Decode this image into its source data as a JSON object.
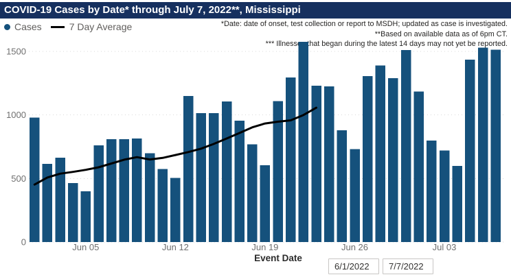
{
  "title": "COVID-19 Cases by Date* through July 7, 2022**, Mississippi",
  "legend": {
    "cases_label": "Cases",
    "avg_label": "7 Day Average"
  },
  "annotations": [
    "*Date: date of onset, test collection or report to MSDH; updated as case is investigated.",
    "**Based on available data as of 6pm CT.",
    "*** Illnesses that began during the latest 14 days may not yet be reported."
  ],
  "colors": {
    "title_bar": "#16305F",
    "bar": "#15517C",
    "avg_line": "#000000",
    "axis_text": "#6F6F6F",
    "legend_text": "#605E5C",
    "annotation_text": "#252423",
    "gridline": "#D9D9D9"
  },
  "date_filters": {
    "start": "6/1/2022",
    "end": "7/7/2022"
  },
  "chart_data": {
    "type": "bar",
    "title": "COVID-19 Cases by Date* through July 7, 2022**, Mississippi",
    "xlabel": "Event Date",
    "ylabel": "",
    "ylim": [
      0,
      1600
    ],
    "yticks": [
      0,
      500,
      1000,
      1500
    ],
    "grid": "horizontal-dotted",
    "legend_position": "top-left",
    "xtick_labels": [
      "Jun 05",
      "Jun 12",
      "Jun 19",
      "Jun 26",
      "Jul 03"
    ],
    "xtick_indices": [
      4,
      11,
      18,
      25,
      32
    ],
    "dates": [
      "Jun 01",
      "Jun 02",
      "Jun 03",
      "Jun 04",
      "Jun 05",
      "Jun 06",
      "Jun 07",
      "Jun 08",
      "Jun 09",
      "Jun 10",
      "Jun 11",
      "Jun 12",
      "Jun 13",
      "Jun 14",
      "Jun 15",
      "Jun 16",
      "Jun 17",
      "Jun 18",
      "Jun 19",
      "Jun 20",
      "Jun 21",
      "Jun 22",
      "Jun 23",
      "Jun 24",
      "Jun 25",
      "Jun 26",
      "Jun 27",
      "Jun 28",
      "Jun 29",
      "Jun 30",
      "Jul 01",
      "Jul 02",
      "Jul 03",
      "Jul 04",
      "Jul 05",
      "Jul 06",
      "Jul 07"
    ],
    "series": [
      {
        "name": "Cases",
        "type": "bar",
        "values": [
          980,
          615,
          665,
          465,
          400,
          760,
          810,
          810,
          815,
          700,
          575,
          505,
          1150,
          1015,
          1015,
          1105,
          955,
          770,
          605,
          1110,
          1295,
          1575,
          1230,
          1225,
          880,
          730,
          1305,
          1390,
          1290,
          1510,
          1185,
          800,
          720,
          600,
          1435,
          1530,
          1515
        ]
      },
      {
        "name": "7 Day Average",
        "type": "line",
        "values": [
          452,
          508,
          538,
          552,
          568,
          588,
          618,
          648,
          668,
          650,
          662,
          685,
          708,
          735,
          772,
          815,
          858,
          903,
          933,
          947,
          958,
          1000,
          1057
        ]
      }
    ]
  }
}
